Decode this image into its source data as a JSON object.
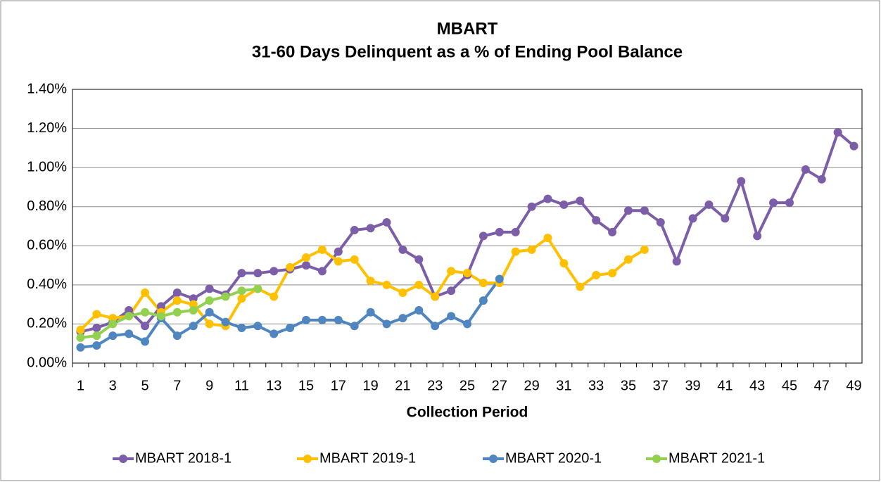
{
  "chart_data": {
    "type": "line",
    "title": "MBART",
    "subtitle": "31-60 Days Delinquent as a % of Ending Pool Balance",
    "x_label": "Collection Period",
    "categories": [
      1,
      null,
      3,
      null,
      5,
      null,
      7,
      null,
      9,
      null,
      11,
      null,
      13,
      null,
      15,
      null,
      17,
      null,
      19,
      null,
      21,
      null,
      23,
      null,
      25,
      null,
      27,
      null,
      29,
      null,
      31,
      null,
      33,
      null,
      35,
      null,
      37,
      null,
      39,
      null,
      41,
      null,
      43,
      null,
      45,
      null,
      47,
      null,
      49
    ],
    "series": [
      {
        "name": "MBART 2018-1",
        "color": "#7b5ea7",
        "values": [
          0.16,
          0.18,
          0.21,
          0.27,
          0.19,
          0.29,
          0.36,
          0.33,
          0.38,
          0.35,
          0.46,
          0.46,
          0.47,
          0.48,
          0.5,
          0.47,
          0.57,
          0.68,
          0.69,
          0.72,
          0.58,
          0.53,
          0.34,
          0.37,
          0.45,
          0.65,
          0.67,
          0.67,
          0.8,
          0.84,
          0.81,
          0.83,
          0.73,
          0.67,
          0.78,
          0.78,
          0.72,
          0.52,
          0.74,
          0.81,
          0.74,
          0.93,
          0.65,
          0.82,
          0.82,
          0.99,
          0.94,
          1.18,
          1.11
        ]
      },
      {
        "name": "MBART 2019-1",
        "color": "#ffc000",
        "values": [
          0.17,
          0.25,
          0.23,
          0.24,
          0.36,
          0.26,
          0.32,
          0.3,
          0.2,
          0.19,
          0.33,
          0.38,
          0.34,
          0.49,
          0.54,
          0.58,
          0.52,
          0.53,
          0.42,
          0.4,
          0.36,
          0.4,
          0.34,
          0.47,
          0.46,
          0.41,
          0.41,
          0.57,
          0.58,
          0.64,
          0.51,
          0.39,
          0.45,
          0.46,
          0.53,
          0.58,
          null,
          null,
          null,
          null,
          null,
          null,
          null,
          null,
          null,
          null,
          null,
          null,
          null
        ]
      },
      {
        "name": "MBART 2020-1",
        "color": "#4f86c0",
        "values": [
          0.08,
          0.09,
          0.14,
          0.15,
          0.11,
          0.23,
          0.14,
          0.19,
          0.26,
          0.21,
          0.18,
          0.19,
          0.15,
          0.18,
          0.22,
          0.22,
          0.22,
          0.19,
          0.26,
          0.2,
          0.23,
          0.27,
          0.19,
          0.24,
          0.2,
          0.32,
          0.43,
          null,
          null,
          null,
          null,
          null,
          null,
          null,
          null,
          null,
          null,
          null,
          null,
          null,
          null,
          null,
          null,
          null,
          null,
          null,
          null,
          null,
          null
        ]
      },
      {
        "name": "MBART 2021-1",
        "color": "#92d050",
        "values": [
          0.13,
          0.14,
          0.2,
          0.24,
          0.26,
          0.24,
          0.26,
          0.27,
          0.32,
          0.34,
          0.37,
          0.38,
          null,
          null,
          null,
          null,
          null,
          null,
          null,
          null,
          null,
          null,
          null,
          null,
          null,
          null,
          null,
          null,
          null,
          null,
          null,
          null,
          null,
          null,
          null,
          null,
          null,
          null,
          null,
          null,
          null,
          null,
          null,
          null,
          null,
          null,
          null,
          null,
          null
        ]
      }
    ],
    "ylim": [
      0,
      1.4
    ],
    "yticks": [
      {
        "value": 0,
        "label": "0.00%"
      },
      {
        "value": 0.2,
        "label": "0.20%"
      },
      {
        "value": 0.4,
        "label": "0.40%"
      },
      {
        "value": 0.6,
        "label": "0.60%"
      },
      {
        "value": 0.8,
        "label": "0.80%"
      },
      {
        "value": 1.0,
        "label": "1.00%"
      },
      {
        "value": 1.2,
        "label": "1.20%"
      },
      {
        "value": 1.4,
        "label": "1.40%"
      }
    ],
    "grid": true,
    "legend": "bottom"
  }
}
